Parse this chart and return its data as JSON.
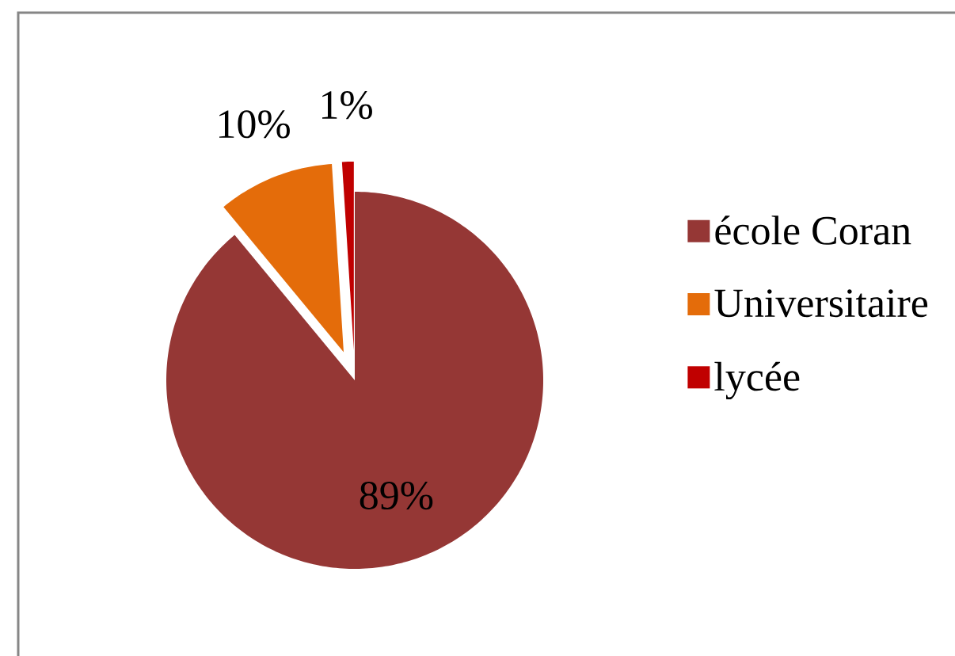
{
  "chart_data": {
    "type": "pie",
    "categories": [
      "école Coran",
      "Universitaire",
      "lycée"
    ],
    "values": [
      89,
      10,
      1
    ],
    "colors": [
      "#953735",
      "#e46c0a",
      "#c00000"
    ],
    "value_labels": [
      "89%",
      "10%",
      "1%"
    ],
    "legend": "right"
  }
}
